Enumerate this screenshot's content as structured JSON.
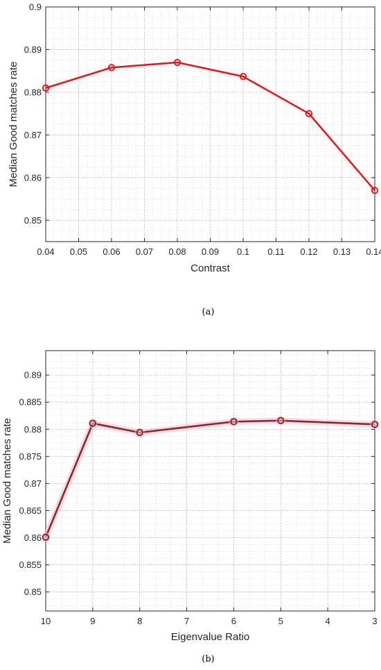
{
  "chart_data": [
    {
      "type": "line",
      "xlabel": "Contrast",
      "ylabel": "Median Good matches rate",
      "caption": "(a)",
      "xlim": [
        0.04,
        0.14
      ],
      "ylim": [
        0.845,
        0.9
      ],
      "xticks": [
        "0.04",
        "0.05",
        "0.06",
        "0.07",
        "0.08",
        "0.09",
        "0.1",
        "0.11",
        "0.12",
        "0.13",
        "0.14"
      ],
      "yticks": [
        "0.85",
        "0.86",
        "0.87",
        "0.88",
        "0.89",
        "0.9"
      ],
      "grid": true,
      "minor_grid": true,
      "series": [
        {
          "color": "#e31a1c",
          "marker": "circle",
          "x": [
            0.04,
            0.06,
            0.08,
            0.1,
            0.12,
            0.14
          ],
          "y": [
            0.881,
            0.8858,
            0.887,
            0.8837,
            0.875,
            0.857
          ]
        }
      ]
    },
    {
      "type": "line",
      "xlabel": "Eigenvalue Ratio",
      "ylabel": "Median Good matches rate",
      "caption": "(b)",
      "x_reversed": true,
      "xlim": [
        3,
        10
      ],
      "ylim": [
        0.8465,
        0.8945
      ],
      "xticks": [
        "10",
        "9",
        "8",
        "7",
        "6",
        "5",
        "4",
        "3"
      ],
      "yticks": [
        "0.85",
        "0.855",
        "0.86",
        "0.865",
        "0.87",
        "0.875",
        "0.88",
        "0.885",
        "0.89"
      ],
      "grid": true,
      "minor_grid": true,
      "series": [
        {
          "color": "#8b2e0f",
          "halo_color": "#f5b8e8",
          "marker": "circle",
          "x": [
            10,
            9,
            8,
            6,
            5,
            3
          ],
          "y": [
            0.8601,
            0.8811,
            0.8794,
            0.8814,
            0.8816,
            0.8809
          ]
        }
      ]
    }
  ]
}
